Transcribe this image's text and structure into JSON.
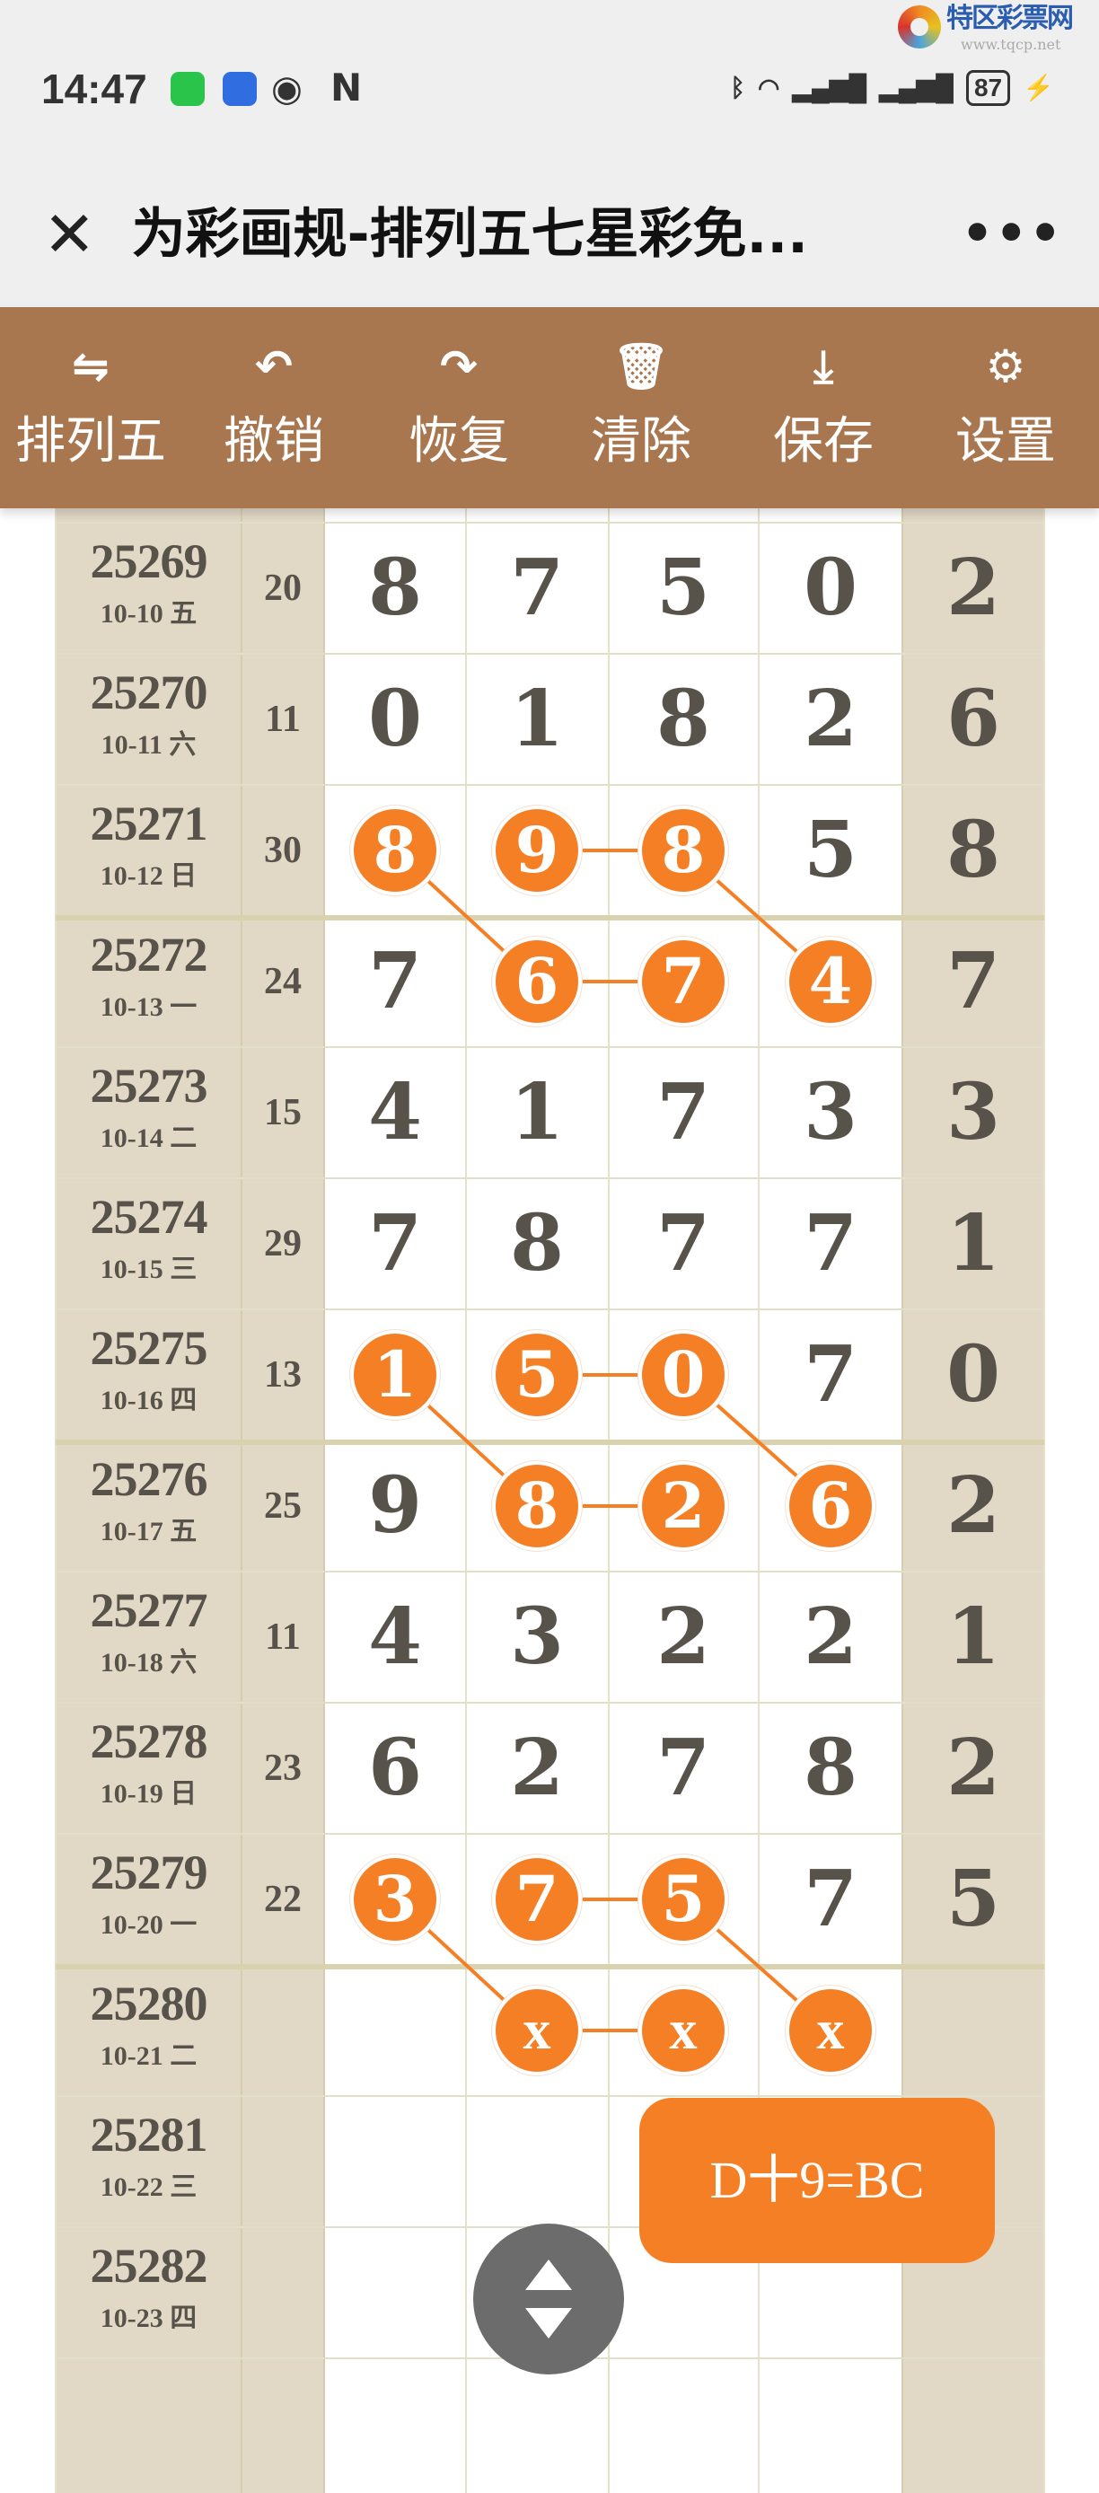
{
  "status_bar": {
    "time": "14:47",
    "battery": "87",
    "icons": [
      "wechat-icon",
      "app-icon",
      "eye-icon",
      "nfc-icon",
      "bluetooth-icon",
      "wifi-icon",
      "signal-icon",
      "signal-icon",
      "charging-icon"
    ]
  },
  "watermark": {
    "name": "特区彩票网",
    "url": "www.tqcp.net"
  },
  "titlebar": {
    "close": "✕",
    "title": "为彩画规-排列五七星彩免...",
    "more": "•••"
  },
  "toolbar": [
    {
      "icon": "swap-icon",
      "glyph": "⇋",
      "label": "排列五"
    },
    {
      "icon": "undo-icon",
      "glyph": "↶",
      "label": "撤销"
    },
    {
      "icon": "redo-icon",
      "glyph": "↷",
      "label": "恢复"
    },
    {
      "icon": "trash-icon",
      "glyph": "🗑",
      "label": "清除"
    },
    {
      "icon": "download-icon",
      "glyph": "⤓",
      "label": "保存"
    },
    {
      "icon": "gear-icon",
      "glyph": "⚙",
      "label": "设置"
    }
  ],
  "colors": {
    "toolbar": "#a9774f",
    "side_column": "#e2d8c6",
    "highlight": "#f57f25",
    "digit": "#57534a"
  },
  "rows": [
    {
      "issue": "25269",
      "date": "10-10 五",
      "sum": "20",
      "digits": [
        "8",
        "7",
        "5",
        "0"
      ],
      "extra": "2",
      "marked": []
    },
    {
      "issue": "25270",
      "date": "10-11 六",
      "sum": "11",
      "digits": [
        "0",
        "1",
        "8",
        "2"
      ],
      "extra": "6",
      "marked": []
    },
    {
      "issue": "25271",
      "date": "10-12 日",
      "sum": "30",
      "digits": [
        "8",
        "9",
        "8",
        "5"
      ],
      "extra": "8",
      "marked": [
        0,
        1,
        2
      ]
    },
    {
      "issue": "25272",
      "date": "10-13 一",
      "sum": "24",
      "digits": [
        "7",
        "6",
        "7",
        "4"
      ],
      "extra": "7",
      "marked": [
        1,
        2,
        3
      ]
    },
    {
      "issue": "25273",
      "date": "10-14 二",
      "sum": "15",
      "digits": [
        "4",
        "1",
        "7",
        "3"
      ],
      "extra": "3",
      "marked": []
    },
    {
      "issue": "25274",
      "date": "10-15 三",
      "sum": "29",
      "digits": [
        "7",
        "8",
        "7",
        "7"
      ],
      "extra": "1",
      "marked": []
    },
    {
      "issue": "25275",
      "date": "10-16 四",
      "sum": "13",
      "digits": [
        "1",
        "5",
        "0",
        "7"
      ],
      "extra": "0",
      "marked": [
        0,
        1,
        2
      ]
    },
    {
      "issue": "25276",
      "date": "10-17 五",
      "sum": "25",
      "digits": [
        "9",
        "8",
        "2",
        "6"
      ],
      "extra": "2",
      "marked": [
        1,
        2,
        3
      ]
    },
    {
      "issue": "25277",
      "date": "10-18 六",
      "sum": "11",
      "digits": [
        "4",
        "3",
        "2",
        "2"
      ],
      "extra": "1",
      "marked": []
    },
    {
      "issue": "25278",
      "date": "10-19 日",
      "sum": "23",
      "digits": [
        "6",
        "2",
        "7",
        "8"
      ],
      "extra": "2",
      "marked": []
    },
    {
      "issue": "25279",
      "date": "10-20 一",
      "sum": "22",
      "digits": [
        "3",
        "7",
        "5",
        "7"
      ],
      "extra": "5",
      "marked": [
        0,
        1,
        2
      ]
    },
    {
      "issue": "25280",
      "date": "10-21 二",
      "sum": "",
      "digits": [
        "",
        "x",
        "x",
        "x"
      ],
      "extra": "",
      "marked": [
        1,
        2,
        3
      ]
    },
    {
      "issue": "25281",
      "date": "10-22 三",
      "sum": "",
      "digits": [
        "",
        "",
        "",
        ""
      ],
      "extra": "",
      "marked": []
    },
    {
      "issue": "25282",
      "date": "10-23 四",
      "sum": "",
      "digits": [
        "",
        "",
        "",
        ""
      ],
      "extra": "",
      "marked": []
    }
  ],
  "links": [
    [
      [
        2,
        0
      ],
      [
        3,
        1
      ]
    ],
    [
      [
        2,
        1
      ],
      [
        2,
        2
      ]
    ],
    [
      [
        2,
        2
      ],
      [
        3,
        3
      ]
    ],
    [
      [
        3,
        1
      ],
      [
        3,
        2
      ]
    ],
    [
      [
        6,
        0
      ],
      [
        7,
        1
      ]
    ],
    [
      [
        6,
        1
      ],
      [
        6,
        2
      ]
    ],
    [
      [
        6,
        2
      ],
      [
        7,
        3
      ]
    ],
    [
      [
        7,
        1
      ],
      [
        7,
        2
      ]
    ],
    [
      [
        10,
        0
      ],
      [
        11,
        1
      ]
    ],
    [
      [
        10,
        1
      ],
      [
        10,
        2
      ]
    ],
    [
      [
        10,
        2
      ],
      [
        11,
        3
      ]
    ],
    [
      [
        11,
        1
      ],
      [
        11,
        2
      ]
    ]
  ],
  "formula_button": "D十9=BC"
}
